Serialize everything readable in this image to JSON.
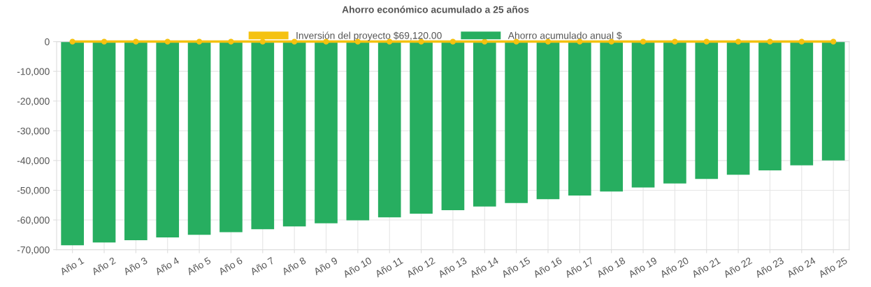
{
  "chart_data": {
    "type": "bar",
    "title": "Ahorro económico acumulado a 25 años",
    "categories": [
      "Año 1",
      "Año 2",
      "Año 3",
      "Año 4",
      "Año 5",
      "Año 6",
      "Año 7",
      "Año 8",
      "Año 9",
      "Año 10",
      "Año 11",
      "Año 12",
      "Año 13",
      "Año 14",
      "Año 15",
      "Año 16",
      "Año 17",
      "Año 18",
      "Año 19",
      "Año 20",
      "Año 21",
      "Año 22",
      "Año 23",
      "Año 24",
      "Año 25"
    ],
    "series": [
      {
        "name": "Inversión del proyecto $69,120.00",
        "type": "line",
        "marker": "circle",
        "color": "#f5c211",
        "values": [
          0,
          0,
          0,
          0,
          0,
          0,
          0,
          0,
          0,
          0,
          0,
          0,
          0,
          0,
          0,
          0,
          0,
          0,
          0,
          0,
          0,
          0,
          0,
          0,
          0
        ]
      },
      {
        "name": "Ahorro acumulado anual $",
        "color": "#27ae60",
        "values": [
          -68500,
          -67600,
          -66800,
          -65900,
          -65000,
          -64100,
          -63100,
          -62200,
          -61100,
          -60100,
          -59100,
          -57900,
          -56700,
          -55500,
          -54300,
          -53000,
          -51800,
          -50400,
          -49100,
          -47700,
          -46200,
          -44800,
          -43300,
          -41600,
          -40000
        ]
      }
    ],
    "ylim": [
      -70000,
      0
    ],
    "yticks": [
      {
        "value": -70000,
        "label": "-70,000"
      },
      {
        "value": -60000,
        "label": "-60,000"
      },
      {
        "value": -50000,
        "label": "-50,000"
      },
      {
        "value": -40000,
        "label": "-40,000"
      },
      {
        "value": -30000,
        "label": "-30,000"
      },
      {
        "value": -20000,
        "label": "-20,000"
      },
      {
        "value": -10000,
        "label": "-10,000"
      },
      0
    ],
    "grid": true,
    "legend": "top"
  }
}
